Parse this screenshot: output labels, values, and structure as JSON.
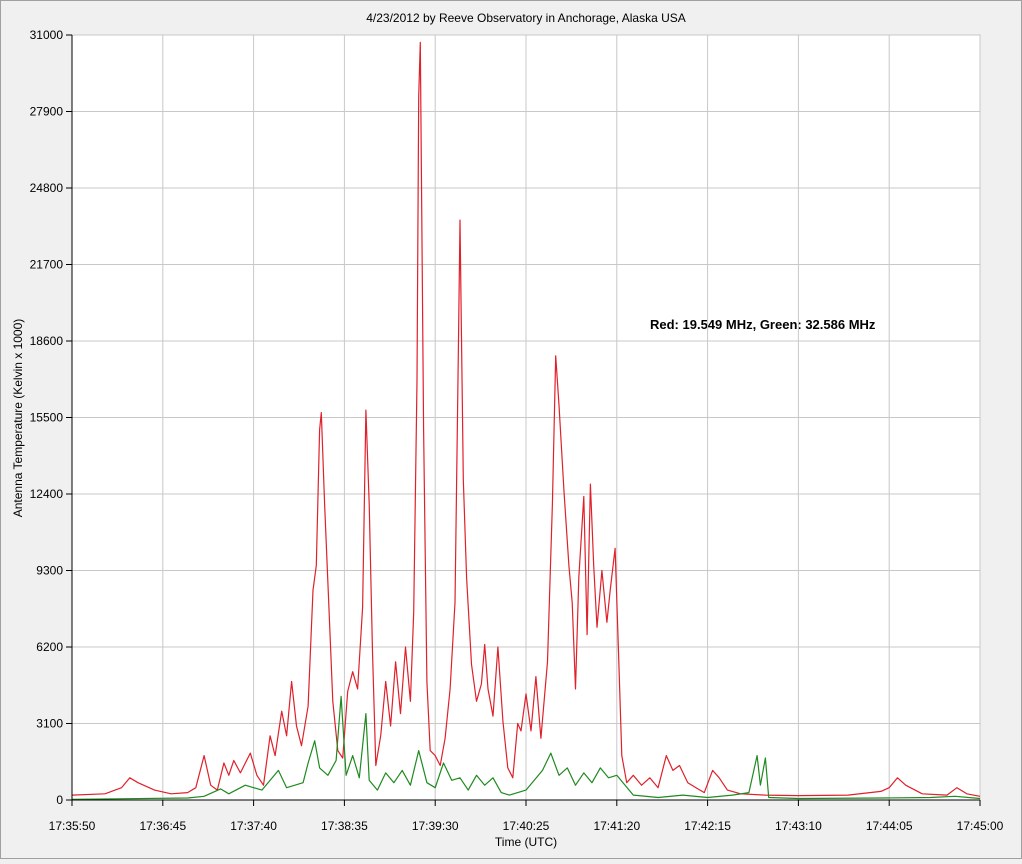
{
  "chart_data": {
    "type": "line",
    "title": "4/23/2012  by  Reeve Observatory  in  Anchorage, Alaska  USA",
    "annotation": "Red: 19.549 MHz, Green: 32.586 MHz",
    "xlabel": "Time (UTC)",
    "ylabel": "Antenna Temperature (Kelvin x 1000)",
    "xlim": [
      "17:35:50",
      "17:45:00"
    ],
    "xticks": [
      "17:35:50",
      "17:36:45",
      "17:37:40",
      "17:38:35",
      "17:39:30",
      "17:40:25",
      "17:41:20",
      "17:42:15",
      "17:43:10",
      "17:44:05",
      "17:45:00"
    ],
    "ylim": [
      0,
      31000
    ],
    "yticks": [
      0,
      3100,
      6200,
      9300,
      12400,
      15500,
      18600,
      21700,
      24800,
      27900,
      31000
    ],
    "grid": true,
    "series": [
      {
        "color": "#e0202a",
        "x": [
          "17:35:50",
          "17:36:10",
          "17:36:20",
          "17:36:25",
          "17:36:30",
          "17:36:40",
          "17:36:50",
          "17:37:00",
          "17:37:05",
          "17:37:10",
          "17:37:14",
          "17:37:18",
          "17:37:22",
          "17:37:25",
          "17:37:28",
          "17:37:32",
          "17:37:38",
          "17:37:42",
          "17:37:46",
          "17:37:50",
          "17:37:53",
          "17:37:57",
          "17:38:00",
          "17:38:03",
          "17:38:06",
          "17:38:09",
          "17:38:13",
          "17:38:16",
          "17:38:18",
          "17:38:20",
          "17:38:21",
          "17:38:23",
          "17:38:25",
          "17:38:28",
          "17:38:31",
          "17:38:34",
          "17:38:37",
          "17:38:40",
          "17:38:43",
          "17:38:46",
          "17:38:48",
          "17:38:50",
          "17:38:52",
          "17:38:54",
          "17:38:57",
          "17:39:00",
          "17:39:03",
          "17:39:06",
          "17:39:09",
          "17:39:12",
          "17:39:15",
          "17:39:17",
          "17:39:19",
          "17:39:20",
          "17:39:21",
          "17:39:23",
          "17:39:25",
          "17:39:27",
          "17:39:30",
          "17:39:33",
          "17:39:36",
          "17:39:39",
          "17:39:42",
          "17:39:44",
          "17:39:45",
          "17:39:47",
          "17:39:49",
          "17:39:52",
          "17:39:55",
          "17:39:58",
          "17:40:00",
          "17:40:02",
          "17:40:05",
          "17:40:08",
          "17:40:11",
          "17:40:14",
          "17:40:17",
          "17:40:20",
          "17:40:22",
          "17:40:25",
          "17:40:28",
          "17:40:31",
          "17:40:34",
          "17:40:38",
          "17:40:41",
          "17:40:43",
          "17:40:45",
          "17:40:48",
          "17:40:51",
          "17:40:53",
          "17:40:55",
          "17:40:57",
          "17:41:00",
          "17:41:02",
          "17:41:04",
          "17:41:06",
          "17:41:08",
          "17:41:11",
          "17:41:14",
          "17:41:16",
          "17:41:19",
          "17:41:21",
          "17:41:23",
          "17:41:26",
          "17:41:30",
          "17:41:35",
          "17:41:40",
          "17:41:45",
          "17:41:50",
          "17:41:54",
          "17:41:58",
          "17:42:03",
          "17:42:08",
          "17:42:13",
          "17:42:18",
          "17:42:22",
          "17:42:27",
          "17:42:35",
          "17:42:50",
          "17:43:10",
          "17:43:40",
          "17:44:00",
          "17:44:05",
          "17:44:10",
          "17:44:15",
          "17:44:25",
          "17:44:40",
          "17:44:46",
          "17:44:52",
          "17:45:00"
        ],
        "values": [
          200,
          250,
          500,
          900,
          700,
          400,
          250,
          300,
          500,
          1800,
          600,
          400,
          1500,
          1000,
          1600,
          1100,
          1900,
          1000,
          600,
          2600,
          1800,
          3600,
          2600,
          4800,
          3000,
          2200,
          3800,
          8500,
          9500,
          15000,
          15700,
          12000,
          8800,
          4000,
          2000,
          1700,
          4400,
          5200,
          4500,
          7800,
          15800,
          12000,
          6000,
          1400,
          2600,
          4800,
          3000,
          5600,
          3500,
          6200,
          4000,
          7600,
          17000,
          28500,
          30700,
          15000,
          4800,
          2000,
          1800,
          1400,
          2500,
          4500,
          8000,
          18000,
          23500,
          13000,
          9000,
          5500,
          4000,
          4700,
          6300,
          4500,
          3400,
          6200,
          3200,
          1300,
          900,
          3100,
          2800,
          4300,
          2800,
          5000,
          2500,
          5600,
          12000,
          18000,
          16000,
          12500,
          9500,
          8000,
          4500,
          9000,
          12300,
          6700,
          12800,
          9500,
          7000,
          9300,
          7200,
          8500,
          10200,
          6000,
          1800,
          700,
          1000,
          600,
          900,
          500,
          1800,
          1200,
          1400,
          700,
          500,
          300,
          1200,
          900,
          400,
          250,
          200,
          180,
          200,
          350,
          500,
          900,
          600,
          250,
          200,
          500,
          250,
          150
        ]
      },
      {
        "color": "#1f8a1f",
        "x": [
          "17:35:50",
          "17:37:00",
          "17:37:10",
          "17:37:20",
          "17:37:25",
          "17:37:35",
          "17:37:45",
          "17:37:55",
          "17:38:00",
          "17:38:10",
          "17:38:13",
          "17:38:17",
          "17:38:20",
          "17:38:25",
          "17:38:30",
          "17:38:33",
          "17:38:36",
          "17:38:40",
          "17:38:44",
          "17:38:48",
          "17:38:50",
          "17:38:55",
          "17:39:00",
          "17:39:05",
          "17:39:10",
          "17:39:15",
          "17:39:20",
          "17:39:25",
          "17:39:30",
          "17:39:35",
          "17:39:40",
          "17:39:45",
          "17:39:50",
          "17:39:55",
          "17:40:00",
          "17:40:05",
          "17:40:10",
          "17:40:15",
          "17:40:25",
          "17:40:35",
          "17:40:40",
          "17:40:45",
          "17:40:50",
          "17:40:55",
          "17:41:00",
          "17:41:05",
          "17:41:10",
          "17:41:15",
          "17:41:20",
          "17:41:30",
          "17:41:45",
          "17:42:00",
          "17:42:15",
          "17:42:30",
          "17:42:40",
          "17:42:45",
          "17:42:47",
          "17:42:50",
          "17:42:52",
          "17:43:10",
          "17:44:00",
          "17:44:30",
          "17:44:45",
          "17:45:00"
        ],
        "values": [
          30,
          80,
          150,
          450,
          250,
          600,
          400,
          1200,
          500,
          700,
          1500,
          2400,
          1300,
          1000,
          1600,
          4200,
          1000,
          1800,
          900,
          3500,
          800,
          400,
          1100,
          700,
          1200,
          600,
          2000,
          700,
          500,
          1500,
          800,
          900,
          400,
          1000,
          600,
          900,
          300,
          200,
          400,
          1200,
          1900,
          1000,
          1300,
          600,
          1100,
          700,
          1300,
          900,
          1000,
          200,
          100,
          200,
          100,
          200,
          300,
          1800,
          600,
          1700,
          100,
          60,
          80,
          100,
          150,
          60
        ]
      }
    ]
  }
}
